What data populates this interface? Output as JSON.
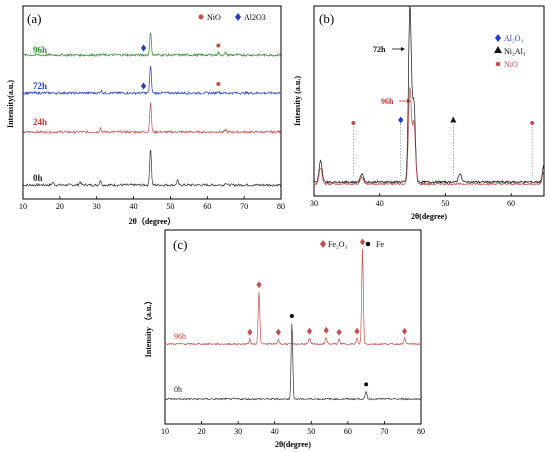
{
  "figure": {
    "panels": [
      {
        "panel_label": "(a)",
        "ylabel": "Intensity(a.u.)",
        "xlabel": "2θ（degree）",
        "x_ticks": [
          "10",
          "20",
          "30",
          "40",
          "50",
          "60",
          "70",
          "80"
        ],
        "legend": [
          {
            "marker": "circle",
            "color": "#c0504d",
            "text": "NiO"
          },
          {
            "marker": "diamond",
            "color": "#1f3fbf",
            "text": "Al2O3"
          }
        ],
        "curve_labels": [
          {
            "text": "96h",
            "color": "#2e8b2e"
          },
          {
            "text": "72h",
            "color": "#1f3fbf"
          },
          {
            "text": "24h",
            "color": "#c0392b"
          },
          {
            "text": "0h",
            "color": "#222222"
          }
        ]
      },
      {
        "panel_label": "(b)",
        "ylabel": "Intensity (a.u.)",
        "xlabel": "2θ(degree)",
        "x_ticks": [
          "30",
          "40",
          "50",
          "60"
        ],
        "legend": [
          {
            "marker": "diamond",
            "color": "#1f3fbf",
            "text": "Al₂O₃"
          },
          {
            "marker": "triangle",
            "color": "#111111",
            "text": "Ni₂Al₃"
          },
          {
            "marker": "circle",
            "color": "#c0504d",
            "text": "NiO"
          }
        ],
        "curve_labels": [
          {
            "text": "72h",
            "color": "#111111"
          },
          {
            "text": "96h",
            "color": "#c0392b"
          }
        ]
      },
      {
        "panel_label": "(c)",
        "ylabel": "Intensity （a.u.）",
        "xlabel": "2θ(degree)",
        "x_ticks": [
          "10",
          "20",
          "30",
          "40",
          "50",
          "60",
          "70",
          "80"
        ],
        "legend": [
          {
            "marker": "diamond",
            "color": "#c0504d",
            "text": "Fe₂O₃"
          },
          {
            "marker": "circle",
            "color": "#111111",
            "text": "Fe"
          }
        ],
        "curve_labels": [
          {
            "text": "96h",
            "color": "#c0392b"
          },
          {
            "text": "0h",
            "color": "#222222"
          }
        ]
      }
    ]
  },
  "chart_data": [
    {
      "type": "line",
      "panel": "(a)",
      "x_range": [
        10,
        80
      ],
      "series": [
        {
          "name": "0h",
          "color": "#333333",
          "peaks": [
            [
              18.1,
              0.06
            ],
            [
              25.5,
              0.07
            ],
            [
              31.0,
              0.1
            ],
            [
              44.6,
              0.75
            ],
            [
              51.9,
              0.1
            ],
            [
              65.0,
              0.05
            ]
          ]
        },
        {
          "name": "24h",
          "color": "#c0504d",
          "peaks": [
            [
              31.0,
              0.08
            ],
            [
              44.6,
              0.6
            ],
            [
              65.0,
              0.04
            ]
          ]
        },
        {
          "name": "72h",
          "color": "#1f3fbf",
          "peaks": [
            [
              31.2,
              0.05
            ],
            [
              44.6,
              0.55
            ],
            [
              63.0,
              0.04
            ]
          ]
        },
        {
          "name": "96h",
          "color": "#2e8b2e",
          "peaks": [
            [
              44.6,
              0.45
            ],
            [
              63.0,
              0.05
            ],
            [
              65.0,
              0.04
            ]
          ]
        }
      ],
      "markers": [
        {
          "series": "96h",
          "x": 42.7,
          "type": "Al2O3"
        },
        {
          "series": "96h",
          "x": 63.0,
          "type": "NiO"
        },
        {
          "series": "72h",
          "x": 42.7,
          "type": "Al2O3"
        },
        {
          "series": "72h",
          "x": 63.0,
          "type": "NiO"
        }
      ]
    },
    {
      "type": "line",
      "panel": "(b)",
      "x_range": [
        30,
        65
      ],
      "series": [
        {
          "name": "72h",
          "color": "#111111",
          "peaks": [
            [
              31.0,
              0.12
            ],
            [
              37.3,
              0.05
            ],
            [
              44.6,
              1.0
            ],
            [
              45.2,
              0.45
            ],
            [
              52.2,
              0.05
            ],
            [
              65.0,
              0.1
            ]
          ]
        },
        {
          "name": "96h",
          "color": "#c0504d",
          "peaks": [
            [
              31.0,
              0.09
            ],
            [
              37.3,
              0.04
            ],
            [
              44.6,
              0.55
            ],
            [
              45.2,
              0.35
            ],
            [
              65.0,
              0.08
            ]
          ]
        }
      ],
      "markers": [
        {
          "x": 36.0,
          "type": "NiO"
        },
        {
          "x": 43.2,
          "type": "Al2O3"
        },
        {
          "x": 51.2,
          "type": "Ni2Al3"
        },
        {
          "x": 63.2,
          "type": "NiO"
        }
      ]
    },
    {
      "type": "line",
      "panel": "(c)",
      "x_range": [
        10,
        80
      ],
      "series": [
        {
          "name": "0h",
          "color": "#333333",
          "peaks": [
            [
              44.7,
              0.8
            ],
            [
              65.0,
              0.08
            ]
          ]
        },
        {
          "name": "96h",
          "color": "#c0504d",
          "peaks": [
            [
              33.2,
              0.05
            ],
            [
              35.7,
              0.55
            ],
            [
              41.0,
              0.05
            ],
            [
              49.5,
              0.06
            ],
            [
              54.1,
              0.07
            ],
            [
              57.6,
              0.05
            ],
            [
              62.5,
              0.06
            ],
            [
              64.0,
              1.0
            ],
            [
              75.5,
              0.06
            ]
          ]
        }
      ],
      "markers": [
        {
          "series": "96h",
          "x": 33.2,
          "type": "Fe2O3"
        },
        {
          "series": "96h",
          "x": 35.7,
          "type": "Fe2O3"
        },
        {
          "series": "96h",
          "x": 41.0,
          "type": "Fe2O3"
        },
        {
          "series": "96h",
          "x": 49.5,
          "type": "Fe2O3"
        },
        {
          "series": "96h",
          "x": 54.1,
          "type": "Fe2O3"
        },
        {
          "series": "96h",
          "x": 57.6,
          "type": "Fe2O3"
        },
        {
          "series": "96h",
          "x": 62.5,
          "type": "Fe2O3"
        },
        {
          "series": "96h",
          "x": 64.0,
          "type": "Fe2O3"
        },
        {
          "series": "96h",
          "x": 75.5,
          "type": "Fe2O3"
        },
        {
          "series": "0h",
          "x": 44.7,
          "type": "Fe"
        },
        {
          "series": "0h",
          "x": 65.0,
          "type": "Fe"
        }
      ]
    }
  ]
}
